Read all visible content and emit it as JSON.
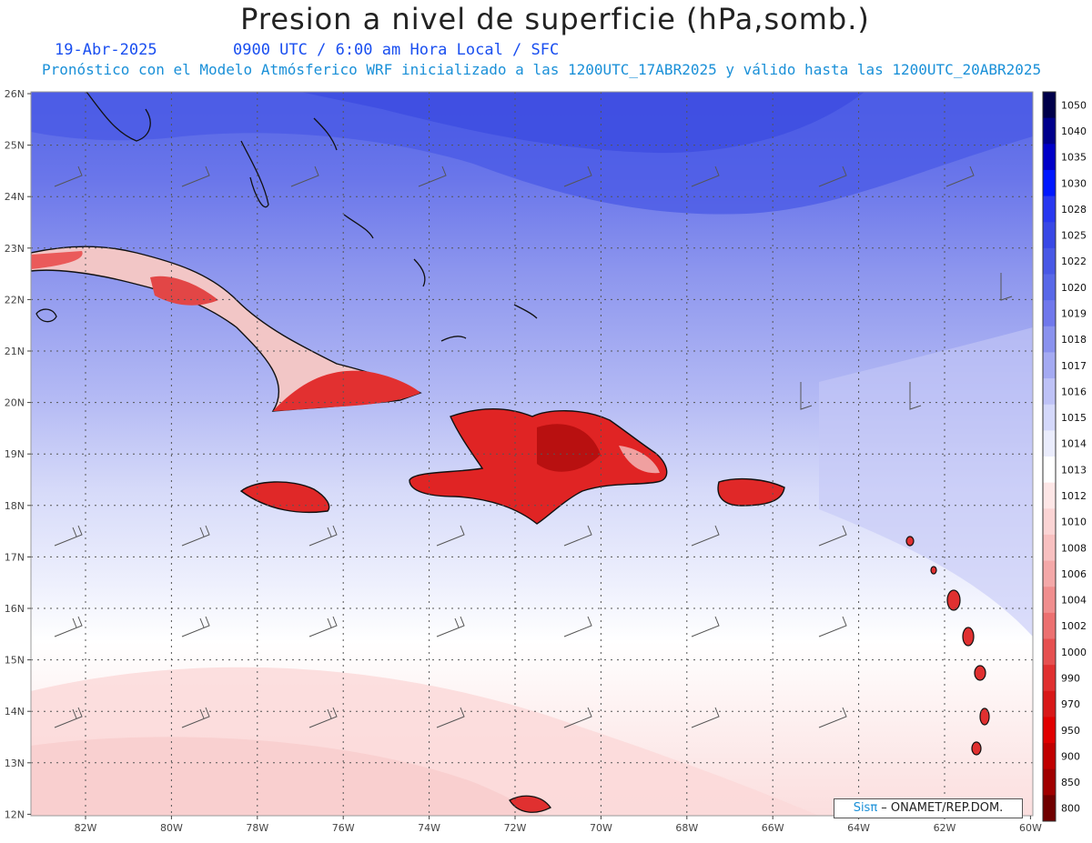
{
  "title": "Presion a nivel de superficie (hPa,somb.)",
  "date": "19-Abr-2025",
  "time_info": "0900 UTC / 6:00 am Hora Local / SFC",
  "model_info": "Pronóstico con el Modelo Atmósferico WRF inicializado a las 1200UTC_17ABR2025 y válido hasta las  1200UTC_20ABR2025",
  "credit": {
    "brand": "Sisπ",
    "org": " – ONAMET/REP.DOM."
  },
  "axes": {
    "lat_labels": [
      "26N",
      "25N",
      "24N",
      "23N",
      "22N",
      "21N",
      "20N",
      "19N",
      "18N",
      "17N",
      "16N",
      "15N",
      "14N",
      "13N",
      "12N"
    ],
    "lon_labels": [
      "82W",
      "80W",
      "78W",
      "76W",
      "74W",
      "72W",
      "70W",
      "68W",
      "66W",
      "64W",
      "62W",
      "60W"
    ]
  },
  "colorbar": {
    "levels": [
      "1050",
      "1040",
      "1035",
      "1030",
      "1028",
      "1025",
      "1022",
      "1020",
      "1019",
      "1018",
      "1017",
      "1016",
      "1015",
      "1014",
      "1013",
      "1012",
      "1010",
      "1008",
      "1006",
      "1004",
      "1002",
      "1000",
      "990",
      "970",
      "950",
      "900",
      "850",
      "800"
    ],
    "colors": [
      "#00004a",
      "#00008c",
      "#0000c8",
      "#0018ff",
      "#2838f0",
      "#3848e6",
      "#4858e6",
      "#5868e8",
      "#7078ec",
      "#8a92ee",
      "#a4aaf2",
      "#bec2f6",
      "#d4d8fa",
      "#eaecfc",
      "#ffffff",
      "#fde6e6",
      "#fbd4d4",
      "#f8c0c0",
      "#f4a8a8",
      "#f08e8e",
      "#ec7070",
      "#e65050",
      "#e03030",
      "#d81818",
      "#e00000",
      "#c00000",
      "#a00000",
      "#700000"
    ]
  }
}
